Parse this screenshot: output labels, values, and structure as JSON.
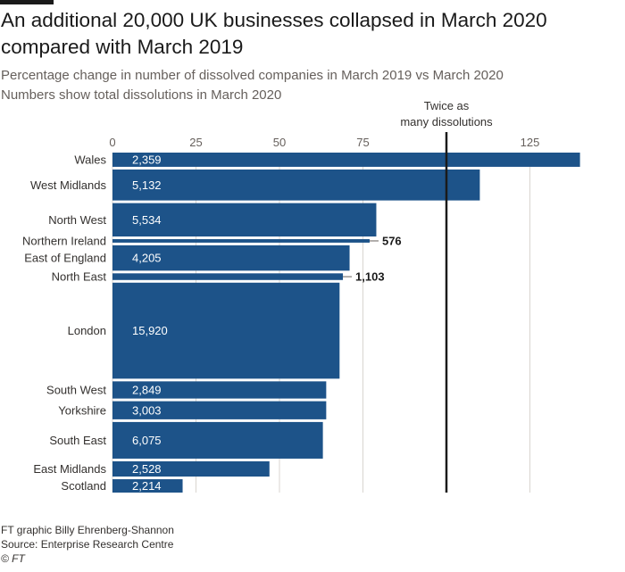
{
  "header": {
    "title": "An additional 20,000 UK businesses collapsed in March 2020 compared with March 2019",
    "subtitle_line1": "Percentage change in number of dissolved companies in March 2019 vs March 2020",
    "subtitle_line2": "Numbers show total dissolutions in March 2020"
  },
  "footer": {
    "credit": "FT graphic Billy Ehrenberg-Shannon",
    "source": "Source: Enterprise Research Centre",
    "copyright": "© FT"
  },
  "colors": {
    "bar": "#1d5389",
    "grid": "#d9d5d0",
    "reference_line": "#1a1a1a",
    "axis_text": "#66605c"
  },
  "chart_data": {
    "type": "bar",
    "orientation": "horizontal",
    "bar_width_encoding": "total dissolutions in March 2020",
    "x_ticks": [
      0,
      25,
      50,
      75,
      125
    ],
    "xlim": [
      0,
      141
    ],
    "grid": true,
    "annotation": {
      "label_line1": "Twice as",
      "label_line2": "many dissolutions",
      "x": 100
    },
    "categories": [
      "Wales",
      "West Midlands",
      "North West",
      "Northern Ireland",
      "East of England",
      "North East",
      "London",
      "South West",
      "Yorkshire",
      "South East",
      "East Midlands",
      "Scotland"
    ],
    "values": [
      140,
      110,
      79,
      77,
      71,
      69,
      68,
      64,
      64,
      63,
      47,
      21
    ],
    "dissolutions": [
      2359,
      5132,
      5534,
      576,
      4205,
      1103,
      15920,
      2849,
      3003,
      6075,
      2528,
      2214
    ],
    "dissolution_labels": [
      "2,359",
      "5,132",
      "5,534",
      "576",
      "4,205",
      "1,103",
      "15,920",
      "2,849",
      "3,003",
      "6,075",
      "2,528",
      "2,214"
    ]
  }
}
